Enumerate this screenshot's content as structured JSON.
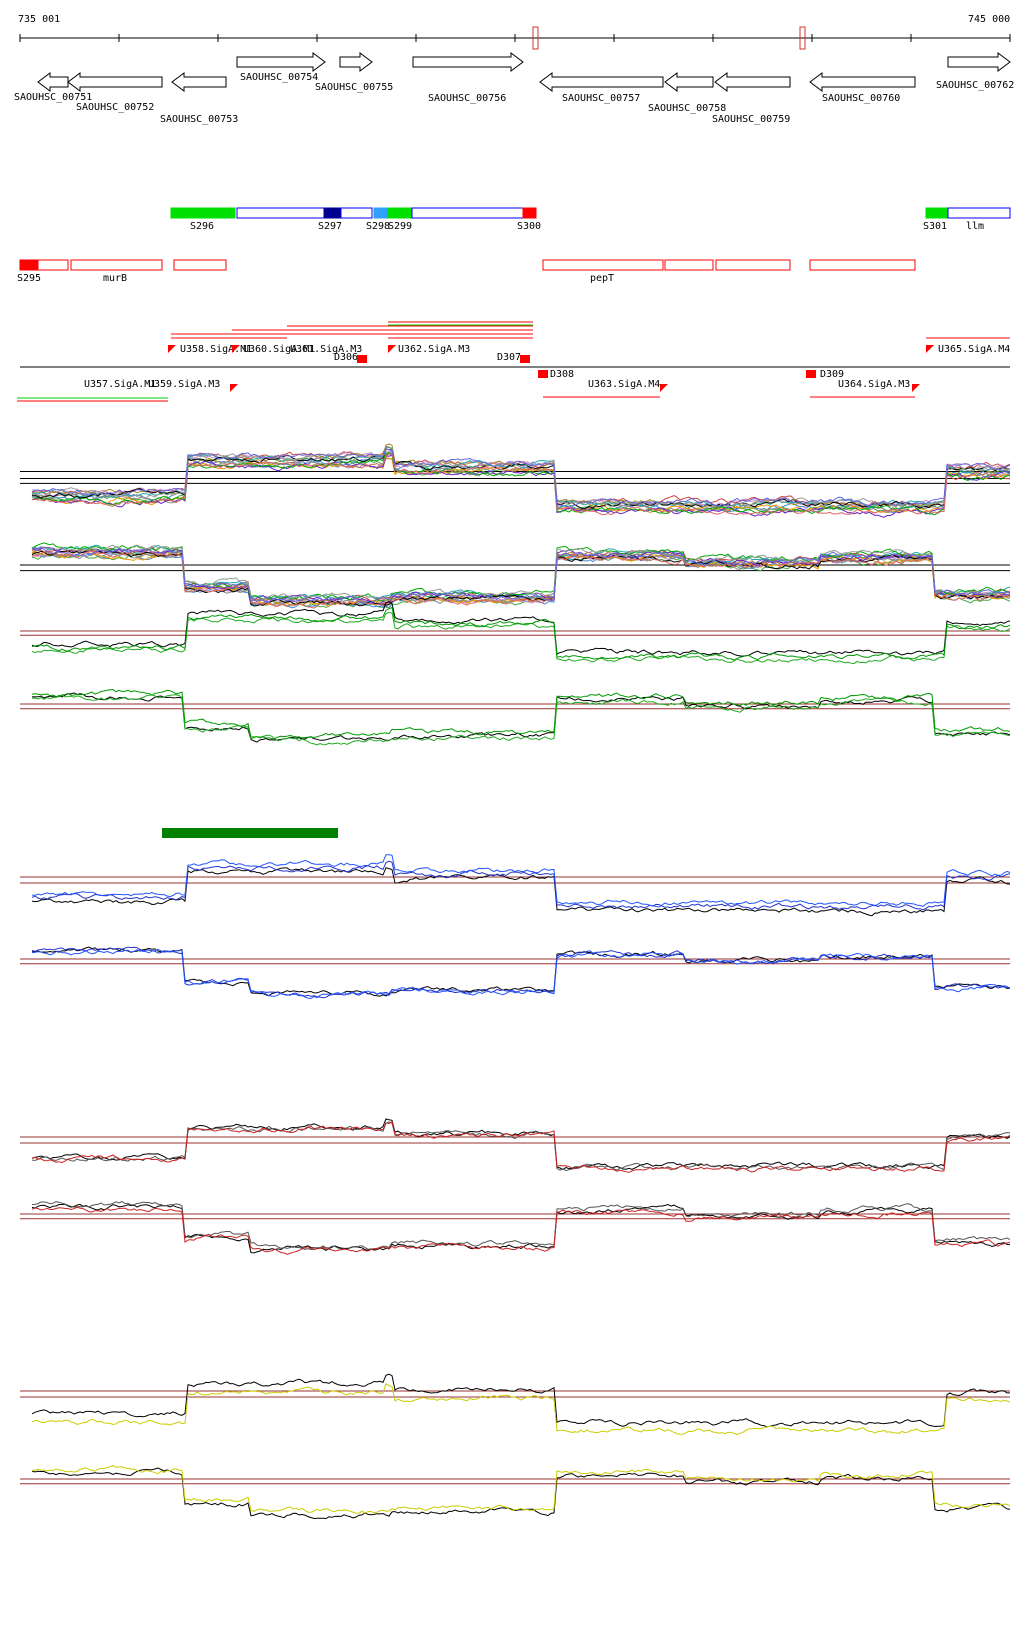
{
  "axis": {
    "start": "735 001",
    "end": "745 000"
  },
  "genes": [
    {
      "label": "SAOUHSC_00751"
    },
    {
      "label": "SAOUHSC_00752"
    },
    {
      "label": "SAOUHSC_00753"
    },
    {
      "label": "SAOUHSC_00754"
    },
    {
      "label": "SAOUHSC_00755"
    },
    {
      "label": "SAOUHSC_00756"
    },
    {
      "label": "SAOUHSC_00757"
    },
    {
      "label": "SAOUHSC_00758"
    },
    {
      "label": "SAOUHSC_00759"
    },
    {
      "label": "SAOUHSC_00760"
    },
    {
      "label": "SAOUHSC_00762"
    }
  ],
  "segments": [
    {
      "label": "S296"
    },
    {
      "label": "S297"
    },
    {
      "label": "S298"
    },
    {
      "label": "S299"
    },
    {
      "label": "S300"
    },
    {
      "label": "S301"
    },
    {
      "label": "llm"
    }
  ],
  "annotations": [
    {
      "label": "S295"
    },
    {
      "label": "murB"
    },
    {
      "label": "pepT"
    }
  ],
  "promoters": [
    {
      "label": "U357.SigA.M1"
    },
    {
      "label": "U358.SigA.M1"
    },
    {
      "label": "U359.SigA.M3"
    },
    {
      "label": "U360.SigA.M1"
    },
    {
      "label": "U361.SigA.M3"
    },
    {
      "label": "U362.SigA.M3"
    },
    {
      "label": "U363.SigA.M4"
    },
    {
      "label": "U364.SigA.M3"
    },
    {
      "label": "U365.SigA.M4"
    },
    {
      "label": "D306"
    },
    {
      "label": "D307"
    },
    {
      "label": "D308"
    },
    {
      "label": "D309"
    }
  ]
}
